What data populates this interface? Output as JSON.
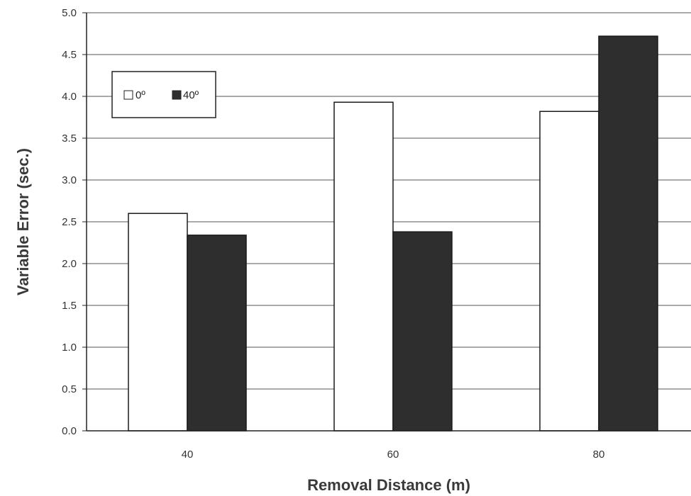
{
  "chart_data": {
    "type": "bar",
    "categories": [
      "40",
      "60",
      "80"
    ],
    "series": [
      {
        "name": "0º",
        "values": [
          2.6,
          3.93,
          3.82
        ]
      },
      {
        "name": "40º",
        "values": [
          2.34,
          2.38,
          4.72
        ]
      }
    ],
    "xlabel": "Removal Distance (m)",
    "ylabel": "Variable Error (sec.)",
    "ylim": [
      0,
      5.0
    ],
    "yticks": [
      "0.0",
      "0.5",
      "1.0",
      "1.5",
      "2.0",
      "2.5",
      "3.0",
      "3.5",
      "4.0",
      "4.5",
      "5.0"
    ],
    "grid": true,
    "legend_position": "top-left"
  },
  "colors": {
    "series_0_fill": "#ffffff",
    "series_1_fill": "#2e2e2e",
    "bar_stroke": "#1a1a1a",
    "grid": "#555555",
    "plot_background": "#ffffff"
  }
}
